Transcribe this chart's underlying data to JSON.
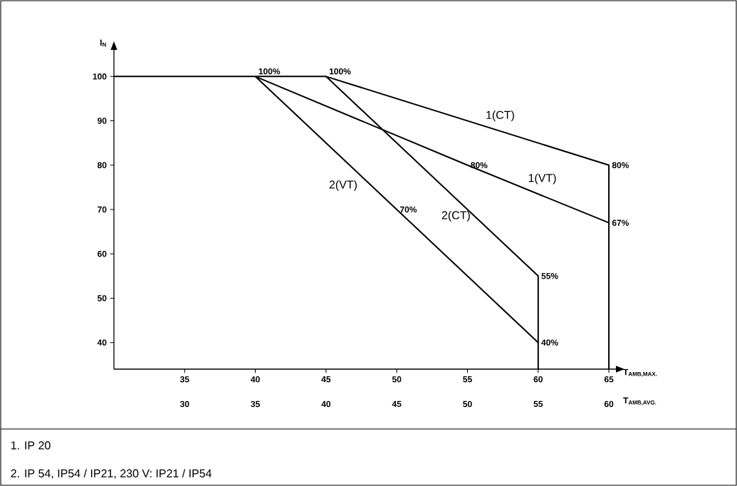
{
  "chart_data": {
    "type": "line",
    "xlabel": "T$_{AMB,MAX.}$",
    "x2label": "T$_{AMB,AVG.}$",
    "ylabel": "I$_{N}$",
    "xlim": [
      30,
      65.5
    ],
    "xticks": [
      35,
      40,
      45,
      50,
      55,
      60,
      65
    ],
    "x2lim": [
      25,
      60.5
    ],
    "x2ticks": [
      30,
      35,
      40,
      45,
      50,
      55,
      60
    ],
    "ylim": [
      34,
      106
    ],
    "yticks": [
      40,
      50,
      60,
      70,
      80,
      90,
      100
    ],
    "grid": false,
    "legend": false,
    "marker": "none",
    "line_style": "solid",
    "series": [
      {
        "name": "1(CT)",
        "color": "#000000",
        "x": [
          30,
          45,
          65,
          65
        ],
        "values": [
          100,
          100,
          80,
          34
        ]
      },
      {
        "name": "1(VT)",
        "color": "#000000",
        "x": [
          40,
          55,
          65
        ],
        "values": [
          100,
          80,
          67
        ]
      },
      {
        "name": "2(CT)",
        "color": "#000000",
        "x": [
          45,
          60,
          60
        ],
        "values": [
          100,
          55,
          34
        ]
      },
      {
        "name": "2(VT)",
        "color": "#000000",
        "x": [
          40,
          50,
          60
        ],
        "values": [
          100,
          70,
          40
        ]
      }
    ],
    "annotations": [
      {
        "text": "100%",
        "x": 40,
        "y": 100
      },
      {
        "text": "100%",
        "x": 45,
        "y": 100
      },
      {
        "text": "80%",
        "x": 65,
        "y": 80
      },
      {
        "text": "80%",
        "x": 55,
        "y": 80
      },
      {
        "text": "67%",
        "x": 65,
        "y": 67
      },
      {
        "text": "70%",
        "x": 50,
        "y": 70
      },
      {
        "text": "55%",
        "x": 60,
        "y": 55
      },
      {
        "text": "40%",
        "x": 60,
        "y": 40
      },
      "1. IP 20",
      "2. IP 54, IP54 / IP21, 230 V: IP21 / IP54"
    ]
  }
}
